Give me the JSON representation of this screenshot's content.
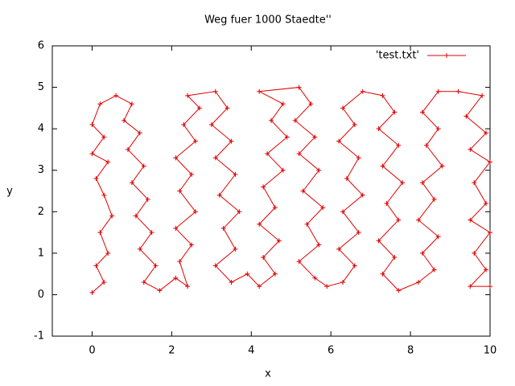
{
  "chart_data": {
    "type": "line",
    "title": "Weg fuer 1000 Staedte''",
    "x_label": "x",
    "y_label": "y",
    "xlim": [
      -1,
      10
    ],
    "ylim": [
      -1,
      6
    ],
    "xticks": [
      0,
      2,
      4,
      6,
      8,
      10
    ],
    "yticks": [
      -1,
      0,
      1,
      2,
      3,
      4,
      5,
      6
    ],
    "legend_position": "top-right",
    "series": [
      {
        "name": "'test.txt'",
        "color": "#e00000",
        "x": [
          0,
          0.3,
          0.1,
          0.4,
          0.2,
          0.5,
          0.3,
          0.1,
          0.4,
          0.0,
          0.3,
          0.0,
          0.2,
          0.6,
          1.0,
          0.8,
          1.2,
          0.9,
          1.3,
          1.0,
          1.4,
          1.1,
          1.5,
          1.2,
          1.6,
          1.3,
          1.7,
          2.1,
          2.4,
          2.2,
          2.5,
          2.1,
          2.6,
          2.2,
          2.5,
          2.1,
          2.6,
          2.3,
          2.7,
          2.4,
          3.1,
          3.4,
          3.0,
          3.5,
          3.1,
          3.6,
          3.2,
          3.7,
          3.3,
          3.6,
          3.1,
          3.5,
          3.9,
          4.2,
          4.6,
          4.3,
          4.7,
          4.2,
          4.6,
          4.3,
          4.8,
          4.4,
          4.9,
          4.5,
          4.8,
          4.2,
          5.2,
          5.5,
          5.1,
          5.6,
          5.2,
          5.7,
          5.3,
          5.8,
          5.4,
          5.7,
          5.2,
          5.6,
          5.9,
          6.3,
          6.6,
          6.2,
          6.7,
          6.3,
          6.8,
          6.4,
          6.7,
          6.2,
          6.6,
          6.3,
          6.8,
          7.3,
          7.6,
          7.2,
          7.7,
          7.3,
          7.8,
          7.4,
          7.7,
          7.2,
          7.6,
          7.3,
          7.7,
          8.2,
          8.6,
          8.3,
          8.7,
          8.2,
          8.6,
          8.3,
          8.8,
          8.4,
          8.7,
          8.3,
          8.7,
          9.2,
          9.8,
          9.4,
          9.9,
          9.5,
          10.0,
          9.6,
          9.9,
          9.5,
          10.0,
          9.6,
          9.9,
          9.5,
          10.0
        ],
        "values": [
          0.05,
          0.3,
          0.7,
          1.0,
          1.5,
          1.9,
          2.4,
          2.8,
          3.2,
          3.4,
          3.8,
          4.1,
          4.6,
          4.8,
          4.6,
          4.2,
          3.9,
          3.5,
          3.1,
          2.7,
          2.3,
          1.9,
          1.5,
          1.1,
          0.7,
          0.3,
          0.1,
          0.4,
          0.2,
          0.8,
          1.2,
          1.6,
          2.0,
          2.5,
          2.9,
          3.3,
          3.7,
          4.1,
          4.5,
          4.8,
          4.9,
          4.5,
          4.1,
          3.7,
          3.3,
          2.9,
          2.4,
          2.0,
          1.6,
          1.1,
          0.7,
          0.3,
          0.5,
          0.2,
          0.5,
          0.9,
          1.3,
          1.7,
          2.1,
          2.6,
          3.0,
          3.4,
          3.8,
          4.2,
          4.6,
          4.9,
          5.0,
          4.6,
          4.2,
          3.8,
          3.4,
          3.0,
          2.5,
          2.1,
          1.7,
          1.2,
          0.8,
          0.4,
          0.2,
          0.3,
          0.7,
          1.1,
          1.5,
          2.0,
          2.4,
          2.8,
          3.3,
          3.7,
          4.1,
          4.5,
          4.9,
          4.8,
          4.4,
          4.0,
          3.6,
          3.1,
          2.7,
          2.2,
          1.8,
          1.3,
          0.9,
          0.5,
          0.1,
          0.3,
          0.6,
          1.0,
          1.4,
          1.8,
          2.3,
          2.7,
          3.1,
          3.6,
          4.0,
          4.4,
          4.9,
          4.9,
          4.8,
          4.3,
          3.9,
          3.5,
          3.2,
          2.7,
          2.2,
          1.8,
          1.5,
          1.0,
          0.6,
          0.2,
          0.2
        ]
      }
    ]
  }
}
